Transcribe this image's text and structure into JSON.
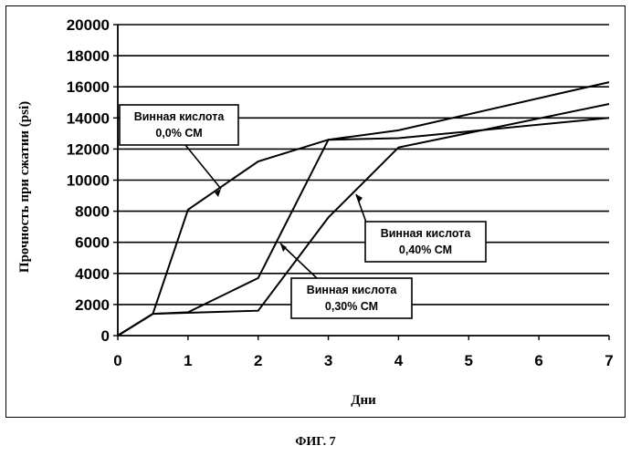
{
  "caption": "ФИГ. 7",
  "chart_data": {
    "type": "line",
    "xlabel": "Дни",
    "ylabel": "Прочность при сжатии (psi)",
    "xlim": [
      0,
      7
    ],
    "ylim": [
      0,
      20000
    ],
    "x_ticks": [
      "0",
      "1",
      "2",
      "3",
      "4",
      "5",
      "6",
      "7"
    ],
    "y_ticks": [
      "0",
      "2000",
      "4000",
      "6000",
      "8000",
      "10000",
      "12000",
      "14000",
      "16000",
      "18000",
      "20000"
    ],
    "grid": "horizontal",
    "series": [
      {
        "label_lines": [
          "Винная кислота",
          "0,0% СМ"
        ],
        "points": [
          [
            0,
            0
          ],
          [
            0.5,
            1400
          ],
          [
            1,
            8100
          ],
          [
            2,
            11200
          ],
          [
            3,
            12600
          ],
          [
            4,
            13200
          ],
          [
            7,
            16300
          ]
        ]
      },
      {
        "label_lines": [
          "Винная кислота",
          "0,30% СМ"
        ],
        "points": [
          [
            0,
            0
          ],
          [
            0.5,
            1400
          ],
          [
            1,
            1500
          ],
          [
            2,
            3700
          ],
          [
            3,
            12600
          ],
          [
            4,
            12700
          ],
          [
            7,
            14000
          ]
        ]
      },
      {
        "label_lines": [
          "Винная кислота",
          "0,40% СМ"
        ],
        "points": [
          [
            0,
            0
          ],
          [
            0.5,
            1400
          ],
          [
            2,
            1600
          ],
          [
            3,
            7600
          ],
          [
            4,
            12100
          ],
          [
            7,
            14900
          ]
        ]
      }
    ]
  }
}
